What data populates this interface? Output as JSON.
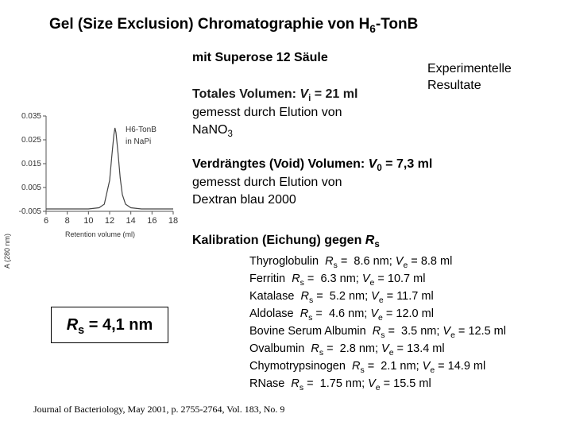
{
  "title": {
    "pre": "Gel (Size Exclusion) Chromatographie von H",
    "sub": "6",
    "post": "-TonB"
  },
  "column": "mit Superose 12 Säule",
  "experimental": {
    "line1": "Experimentelle",
    "line2": "Resultate"
  },
  "total_volume": {
    "label": "Totales Volumen: ",
    "sym": "V",
    "sub": "i",
    "value": " = 21 ml",
    "line2": "gemesst durch Elution von",
    "line3_pre": "NaNO",
    "line3_sub": "3"
  },
  "void_volume": {
    "label": "Verdrängtes (Void) Volumen: ",
    "sym": "V",
    "sub": "0",
    "value": " = 7,3 ml",
    "line2": "gemesst durch Elution von",
    "line3": "Dextran blau 2000"
  },
  "calibration_title": {
    "label": "Kalibration (Eichung) gegen ",
    "sym": "R",
    "sub": "s"
  },
  "calibration": [
    {
      "name": "Thyroglobulin",
      "rs": "8.6 nm",
      "ve": "8.8 ml"
    },
    {
      "name": "Ferritin",
      "rs": "6.3 nm",
      "ve": "10.7 ml"
    },
    {
      "name": "Katalase",
      "rs": "5.2 nm",
      "ve": "11.7 ml"
    },
    {
      "name": "Aldolase",
      "rs": "4.6 nm",
      "ve": "12.0 ml"
    },
    {
      "name": "Bovine Serum Albumin",
      "rs": "3.5 nm",
      "ve": "12.5 ml"
    },
    {
      "name": "Ovalbumin",
      "rs": "2.8 nm",
      "ve": "13.4 ml"
    },
    {
      "name": "Chymotrypsinogen",
      "rs": "2.1 nm",
      "ve": "14.9 ml"
    },
    {
      "name": "RNase",
      "rs": "1.75 nm",
      "ve": "15.5 ml"
    }
  ],
  "result": {
    "sym": "R",
    "sub": "s",
    "value": " = 4,1 nm"
  },
  "citation": "Journal of Bacteriology, May 2001, p. 2755-2764, Vol. 183, No. 9",
  "chart_data": {
    "type": "line",
    "legend_line1": "H6-TonB",
    "legend_line2": "in NaPi",
    "xlabel": "Retention volume (ml)",
    "ylabel": "A (280 nm)",
    "xlim": [
      6,
      18
    ],
    "ylim": [
      -0.005,
      0.035
    ],
    "xticks": [
      "6",
      "8",
      "10",
      "12",
      "14",
      "16",
      "18"
    ],
    "yticks": [
      "0.035",
      "0.025",
      "0.015",
      "0.005",
      "-0.005"
    ],
    "series": [
      {
        "x": [
          6,
          8,
          10,
          11,
          11.5,
          12,
          12.2,
          12.4,
          12.5,
          12.6,
          12.8,
          13.0,
          13.2,
          13.5,
          14,
          15,
          16,
          17,
          18
        ],
        "y": [
          -0.004,
          -0.004,
          -0.004,
          -0.0035,
          -0.002,
          0.008,
          0.018,
          0.027,
          0.03,
          0.028,
          0.019,
          0.009,
          0.002,
          -0.002,
          -0.0035,
          -0.004,
          -0.004,
          -0.004,
          -0.004
        ]
      }
    ]
  }
}
